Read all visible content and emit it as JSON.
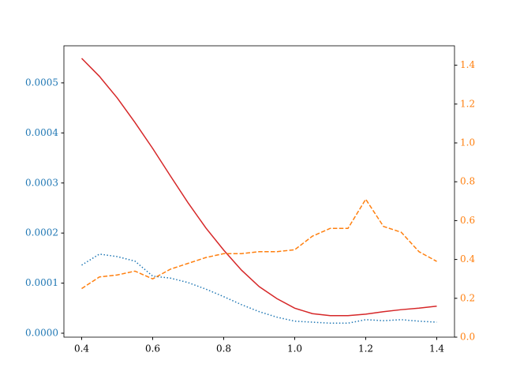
{
  "chart_data": {
    "type": "line",
    "x": [
      0.4,
      0.45,
      0.5,
      0.55,
      0.6,
      0.65,
      0.7,
      0.75,
      0.8,
      0.85,
      0.9,
      0.95,
      1.0,
      1.05,
      1.1,
      1.15,
      1.2,
      1.25,
      1.3,
      1.35,
      1.4
    ],
    "series": [
      {
        "color": "#d62728",
        "linestyle": "solid",
        "axis": "y",
        "values": [
          0.000549,
          0.000513,
          0.00047,
          0.000421,
          0.000369,
          0.000314,
          0.00026,
          0.00021,
          0.000166,
          0.000126,
          9.3e-05,
          6.9e-05,
          5e-05,
          3.9e-05,
          3.5e-05,
          3.5e-05,
          3.8e-05,
          4.3e-05,
          4.7e-05,
          5e-05,
          5.4e-05
        ]
      },
      {
        "color": "#1f77b4",
        "linestyle": "dotted",
        "axis": "y",
        "values": [
          0.000136,
          0.000158,
          0.000153,
          0.000144,
          0.000114,
          0.00011,
          0.000101,
          8.8e-05,
          7.3e-05,
          5.7e-05,
          4.3e-05,
          3.2e-05,
          2.4e-05,
          2.2e-05,
          2e-05,
          2e-05,
          2.7e-05,
          2.5e-05,
          2.7e-05,
          2.4e-05,
          2.2e-05
        ]
      },
      {
        "color": "#ff7f0e",
        "linestyle": "dashed",
        "axis": "y2",
        "values": [
          0.25,
          0.31,
          0.32,
          0.34,
          0.3,
          0.35,
          0.38,
          0.41,
          0.43,
          0.43,
          0.44,
          0.44,
          0.45,
          0.52,
          0.56,
          0.56,
          0.71,
          0.57,
          0.54,
          0.44,
          0.39
        ]
      }
    ],
    "xlim": [
      0.35,
      1.45
    ],
    "xticks": [
      0.4,
      0.6,
      0.8,
      {
        "value": 1.0,
        "label": "1.0"
      },
      1.2,
      1.4
    ],
    "ylim": [
      -7.9e-06,
      0.000574
    ],
    "yticks": [
      {
        "value": 0,
        "label": "0.0000"
      },
      {
        "value": 0.0001,
        "label": "0.0001"
      },
      {
        "value": 0.0002,
        "label": "0.0002"
      },
      {
        "value": 0.0003,
        "label": "0.0003"
      },
      {
        "value": 0.0004,
        "label": "0.0004"
      },
      {
        "value": 0.0005,
        "label": "0.0005"
      }
    ],
    "ytick_color": "#1f77b4",
    "y2lim": [
      0,
      1.5
    ],
    "y2ticks": [
      {
        "value": 0,
        "label": "0.0"
      },
      0.2,
      0.4,
      0.6,
      0.8,
      {
        "value": 1.0,
        "label": "1.0"
      },
      1.2,
      1.4
    ],
    "y2tick_color": "#ff7f0e",
    "grid": false
  }
}
